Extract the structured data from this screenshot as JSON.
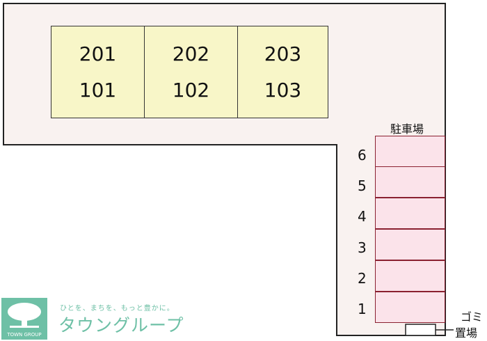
{
  "units": [
    {
      "upper": "201",
      "lower": "101"
    },
    {
      "upper": "202",
      "lower": "102"
    },
    {
      "upper": "203",
      "lower": "103"
    }
  ],
  "parking": {
    "label": "駐車場",
    "spaces": [
      "6",
      "5",
      "4",
      "3",
      "2",
      "1"
    ]
  },
  "garbage": {
    "line1": "ゴミ",
    "line2": "置場"
  },
  "logo": {
    "text": "TOWN GROUP",
    "tagline": "ひとを、まちを、もっと豊かに。",
    "brand": "タウングループ",
    "color": "#6ec0a6"
  }
}
